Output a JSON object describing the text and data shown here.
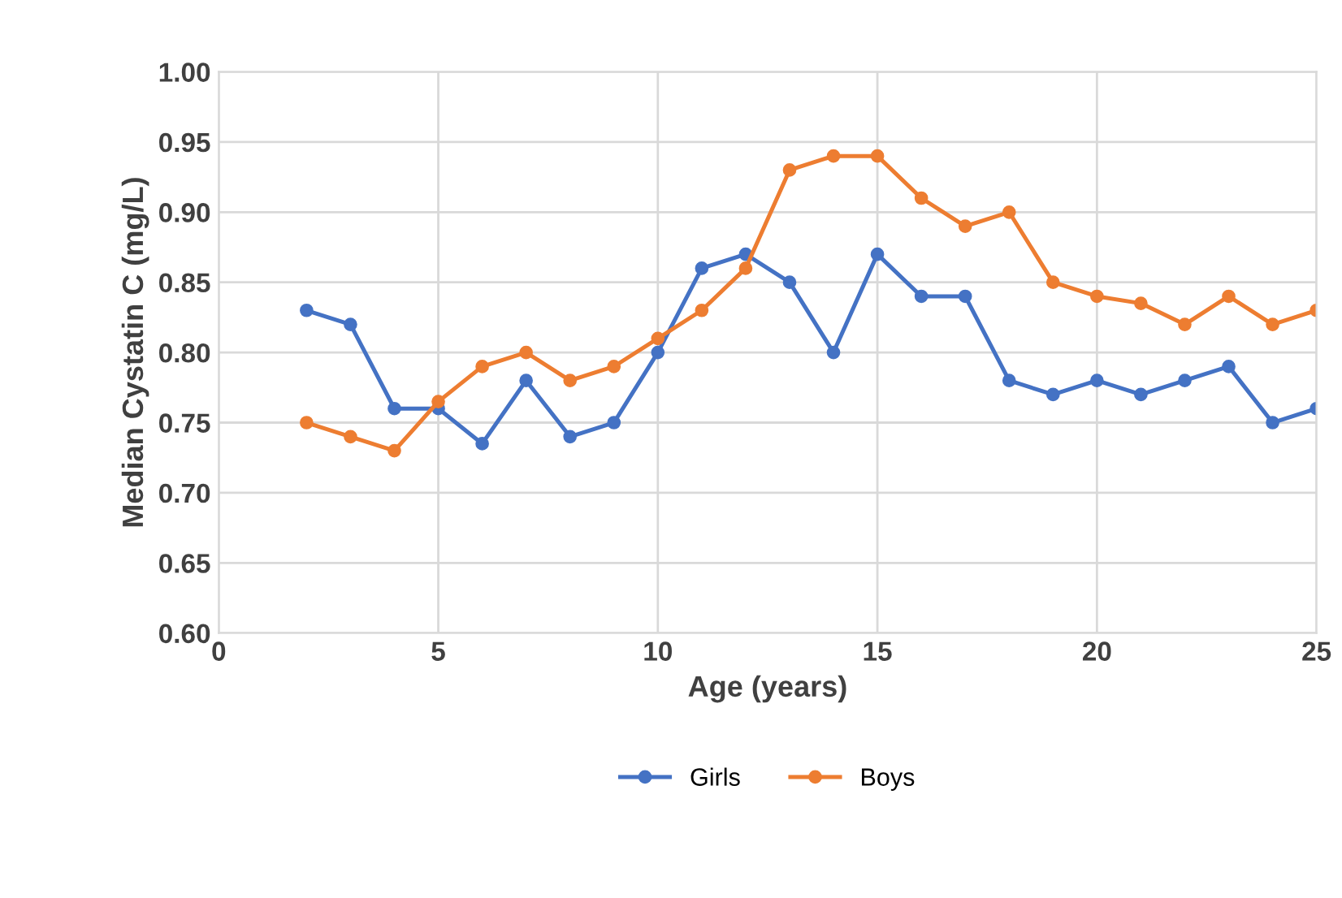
{
  "chart_data": {
    "type": "line",
    "xlabel": "Age (years)",
    "ylabel": "Median Cystatin C (mg/L)",
    "x": [
      2,
      3,
      4,
      5,
      6,
      7,
      8,
      9,
      10,
      11,
      12,
      13,
      14,
      15,
      16,
      17,
      18,
      19,
      20,
      21,
      22,
      23,
      24,
      25
    ],
    "series": [
      {
        "name": "Girls",
        "color": "#4472c4",
        "values": [
          0.83,
          0.82,
          0.76,
          0.76,
          0.735,
          0.78,
          0.74,
          0.75,
          0.8,
          0.86,
          0.87,
          0.85,
          0.8,
          0.87,
          0.84,
          0.84,
          0.78,
          0.77,
          0.78,
          0.77,
          0.78,
          0.79,
          0.75,
          0.76
        ]
      },
      {
        "name": "Boys",
        "color": "#ed7d31",
        "values": [
          0.75,
          0.74,
          0.73,
          0.765,
          0.79,
          0.8,
          0.78,
          0.79,
          0.81,
          0.83,
          0.86,
          0.93,
          0.94,
          0.94,
          0.91,
          0.89,
          0.9,
          0.85,
          0.84,
          0.835,
          0.82,
          0.84,
          0.82,
          0.83
        ]
      }
    ],
    "xlim": [
      0,
      25
    ],
    "xticks": [
      0,
      5,
      10,
      15,
      20,
      25
    ],
    "ylim": [
      0.6,
      1.0
    ],
    "yticks": [
      {
        "value": 0.6,
        "label": "0.60"
      },
      {
        "value": 0.65,
        "label": "0.65"
      },
      {
        "value": 0.7,
        "label": "0.70"
      },
      {
        "value": 0.75,
        "label": "0.75"
      },
      {
        "value": 0.8,
        "label": "0.80"
      },
      {
        "value": 0.85,
        "label": "0.85"
      },
      {
        "value": 0.9,
        "label": "0.90"
      },
      {
        "value": 0.95,
        "label": "0.95"
      },
      {
        "value": 1.0,
        "label": "1.00"
      }
    ],
    "grid": true,
    "legend": "bottom",
    "marker": "circle",
    "line_style": "solid"
  }
}
